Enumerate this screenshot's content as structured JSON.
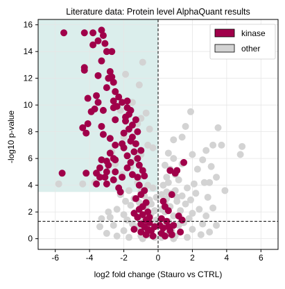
{
  "colors": {
    "kinase": "#a0004a",
    "other": "#d3d3d3",
    "highlight": "#cfe8e5",
    "grid": "#e6e6e6"
  },
  "chart_data": {
    "type": "scatter",
    "title": "Literature data: Protein level AlphaQuant results",
    "xlabel": "log2 fold change (Stauro vs CTRL)",
    "ylabel": "-log10 p-value",
    "xlim": [
      -7,
      7
    ],
    "ylim": [
      -0.8,
      16.4
    ],
    "xticks": [
      -6,
      -4,
      -2,
      0,
      2,
      4,
      6
    ],
    "yticks": [
      0,
      2,
      4,
      6,
      8,
      10,
      12,
      14,
      16
    ],
    "grid": true,
    "legend": "top-right",
    "threshold_lines": {
      "x": 0,
      "y": 1.3
    },
    "highlight_region": {
      "x": [
        -7,
        0
      ],
      "y": [
        3.5,
        16.4
      ]
    },
    "series": [
      {
        "name": "other",
        "color": "#d3d3d3",
        "points": [
          [
            -0.2,
            0.1
          ],
          [
            -0.5,
            0.3
          ],
          [
            -0.8,
            0.5
          ],
          [
            -1.0,
            0.2
          ],
          [
            -0.3,
            0.8
          ],
          [
            -1.2,
            0.9
          ],
          [
            -0.6,
            1.2
          ],
          [
            -1.5,
            1.1
          ],
          [
            -0.9,
            1.6
          ],
          [
            -1.8,
            1.4
          ],
          [
            -0.4,
            1.9
          ],
          [
            -1.3,
            2.0
          ],
          [
            -2.0,
            1.8
          ],
          [
            -0.7,
            2.3
          ],
          [
            -1.6,
            2.5
          ],
          [
            -1.1,
            2.7
          ],
          [
            -0.5,
            2.9
          ],
          [
            -1.9,
            2.8
          ],
          [
            -2.4,
            2.2
          ],
          [
            -1.4,
            3.0
          ],
          [
            -0.8,
            3.2
          ],
          [
            -2.2,
            3.3
          ],
          [
            -1.0,
            3.5
          ],
          [
            -1.7,
            3.6
          ],
          [
            -0.3,
            3.8
          ],
          [
            -0.6,
            4.0
          ],
          [
            -1.2,
            4.2
          ],
          [
            -2.0,
            0.6
          ],
          [
            -2.6,
            1.0
          ],
          [
            -3.0,
            0.4
          ],
          [
            -3.4,
            0.9
          ],
          [
            -2.8,
            1.6
          ],
          [
            -0.1,
            1.4
          ],
          [
            -0.2,
            2.1
          ],
          [
            -0.4,
            2.6
          ],
          [
            -1.1,
            4.6
          ],
          [
            -2.1,
            4.8
          ],
          [
            -0.9,
            5.0
          ],
          [
            -1.6,
            5.4
          ],
          [
            -1.3,
            5.9
          ],
          [
            -2.4,
            0.2
          ],
          [
            -1.7,
            0.1
          ],
          [
            -0.9,
            0.0
          ],
          [
            -2.9,
            2.0
          ],
          [
            -3.3,
            1.5
          ],
          [
            -1.5,
            7.2
          ],
          [
            -1.8,
            8.1
          ],
          [
            -2.0,
            7.6
          ],
          [
            -1.2,
            8.6
          ],
          [
            -1.0,
            9.0
          ],
          [
            -0.7,
            9.4
          ],
          [
            -2.2,
            9.6
          ],
          [
            -1.5,
            10.2
          ],
          [
            -1.1,
            11.5
          ],
          [
            -0.9,
            13.2
          ],
          [
            -1.9,
            12.3
          ],
          [
            -0.5,
            8.2
          ],
          [
            -0.3,
            6.8
          ],
          [
            -2.7,
            6.5
          ],
          [
            -3.0,
            4.1
          ],
          [
            -4.4,
            4.1
          ],
          [
            -5.8,
            4.1
          ],
          [
            -3.7,
            4.2
          ],
          [
            -3.5,
            5.0
          ],
          [
            -2.5,
            5.6
          ],
          [
            -1.0,
            6.3
          ],
          [
            -0.6,
            7.0
          ],
          [
            0.2,
            0.1
          ],
          [
            0.5,
            0.3
          ],
          [
            0.8,
            0.6
          ],
          [
            1.0,
            0.2
          ],
          [
            0.3,
            0.9
          ],
          [
            1.2,
            1.0
          ],
          [
            0.6,
            1.3
          ],
          [
            1.5,
            1.2
          ],
          [
            0.9,
            1.7
          ],
          [
            1.8,
            1.5
          ],
          [
            0.4,
            2.0
          ],
          [
            1.3,
            2.1
          ],
          [
            2.0,
            1.9
          ],
          [
            0.7,
            2.4
          ],
          [
            1.6,
            2.6
          ],
          [
            1.1,
            2.8
          ],
          [
            0.5,
            3.0
          ],
          [
            1.9,
            2.9
          ],
          [
            2.4,
            2.2
          ],
          [
            1.4,
            3.2
          ],
          [
            0.8,
            3.4
          ],
          [
            2.2,
            3.4
          ],
          [
            1.0,
            3.6
          ],
          [
            1.7,
            3.8
          ],
          [
            0.3,
            4.0
          ],
          [
            0.6,
            4.2
          ],
          [
            1.2,
            4.4
          ],
          [
            2.0,
            0.7
          ],
          [
            2.6,
            1.1
          ],
          [
            3.0,
            0.5
          ],
          [
            3.4,
            1.0
          ],
          [
            2.8,
            1.7
          ],
          [
            0.1,
            1.5
          ],
          [
            0.2,
            2.2
          ],
          [
            0.4,
            2.7
          ],
          [
            1.0,
            4.8
          ],
          [
            0.7,
            5.2
          ],
          [
            1.4,
            5.6
          ],
          [
            0.5,
            4.6
          ],
          [
            0.9,
            6.0
          ],
          [
            2.5,
            0.3
          ],
          [
            1.7,
            0.1
          ],
          [
            0.9,
            0.0
          ],
          [
            3.2,
            2.3
          ],
          [
            2.9,
            3.1
          ],
          [
            2.1,
            4.1
          ],
          [
            2.7,
            4.2
          ],
          [
            3.0,
            4.2
          ],
          [
            3.9,
            3.6
          ],
          [
            3.4,
            4.6
          ],
          [
            0.9,
            7.4
          ],
          [
            1.4,
            7.6
          ],
          [
            2.0,
            6.3
          ],
          [
            2.8,
            6.6
          ],
          [
            3.2,
            7.0
          ],
          [
            3.5,
            8.3
          ],
          [
            3.7,
            7.0
          ],
          [
            4.8,
            6.3
          ],
          [
            4.9,
            6.9
          ],
          [
            1.6,
            8.4
          ],
          [
            0.6,
            6.4
          ],
          [
            0.4,
            5.5
          ],
          [
            2.3,
            5.2
          ],
          [
            3.1,
            5.4
          ],
          [
            2.6,
            5.9
          ],
          [
            1.9,
            9.5
          ],
          [
            0.5,
            3.5
          ],
          [
            1.1,
            3.1
          ],
          [
            0.2,
            3.3
          ],
          [
            -0.1,
            3.1
          ]
        ]
      },
      {
        "name": "kinase",
        "color": "#a0004a",
        "points": [
          [
            -5.5,
            15.4
          ],
          [
            -4.3,
            15.4
          ],
          [
            -3.8,
            15.4
          ],
          [
            -3.3,
            15.6
          ],
          [
            -3.2,
            15.2
          ],
          [
            -3.5,
            14.8
          ],
          [
            -3.1,
            14.6
          ],
          [
            -3.8,
            14.5
          ],
          [
            -2.7,
            14.0
          ],
          [
            -3.0,
            14.0
          ],
          [
            -3.3,
            13.3
          ],
          [
            -4.3,
            12.8
          ],
          [
            -4.3,
            12.6
          ],
          [
            -2.8,
            12.5
          ],
          [
            -3.5,
            12.2
          ],
          [
            -2.9,
            12.0
          ],
          [
            -2.7,
            12.1
          ],
          [
            -2.6,
            11.7
          ],
          [
            -3.0,
            11.3
          ],
          [
            -2.5,
            11.0
          ],
          [
            -2.3,
            10.6
          ],
          [
            -2.6,
            10.3
          ],
          [
            -1.8,
            10.3
          ],
          [
            -2.1,
            10.2
          ],
          [
            -2.4,
            9.9
          ],
          [
            -1.8,
            9.8
          ],
          [
            -3.6,
            10.7
          ],
          [
            -4.1,
            10.5
          ],
          [
            -3.5,
            10.2
          ],
          [
            -3.7,
            9.7
          ],
          [
            -3.9,
            9.5
          ],
          [
            -2.6,
            9.8
          ],
          [
            -3.2,
            9.6
          ],
          [
            -1.6,
            9.6
          ],
          [
            -1.7,
            9.3
          ],
          [
            -1.9,
            9.1
          ],
          [
            -2.5,
            8.9
          ],
          [
            -1.3,
            8.9
          ],
          [
            -1.9,
            8.8
          ],
          [
            -1.5,
            8.5
          ],
          [
            -1.7,
            8.2
          ],
          [
            -1.2,
            8.0
          ],
          [
            -2.0,
            7.9
          ],
          [
            -1.5,
            7.6
          ],
          [
            -1.6,
            7.3
          ],
          [
            -1.3,
            7.1
          ],
          [
            -2.0,
            6.8
          ],
          [
            -1.0,
            6.6
          ],
          [
            -1.4,
            6.5
          ],
          [
            -1.8,
            6.2
          ],
          [
            -1.2,
            6.0
          ],
          [
            -2.5,
            5.9
          ],
          [
            -1.6,
            5.7
          ],
          [
            -1.1,
            5.5
          ],
          [
            -1.8,
            5.3
          ],
          [
            -0.9,
            5.1
          ],
          [
            -1.5,
            4.8
          ],
          [
            -0.8,
            4.7
          ],
          [
            -1.2,
            4.6
          ],
          [
            -2.1,
            4.6
          ],
          [
            -4.4,
            8.3
          ],
          [
            -4.2,
            7.9
          ],
          [
            -4.1,
            8.6
          ],
          [
            -3.3,
            8.4
          ],
          [
            -3.2,
            7.8
          ],
          [
            -2.8,
            7.5
          ],
          [
            -2.5,
            7.0
          ],
          [
            -2.8,
            6.4
          ],
          [
            -2.6,
            6.0
          ],
          [
            -3.0,
            5.8
          ],
          [
            -3.3,
            5.9
          ],
          [
            -2.9,
            5.5
          ],
          [
            -3.4,
            5.3
          ],
          [
            -2.5,
            5.0
          ],
          [
            -3.1,
            4.6
          ],
          [
            -3.0,
            4.1
          ],
          [
            -2.6,
            4.4
          ],
          [
            -2.3,
            3.8
          ],
          [
            -2.2,
            3.5
          ],
          [
            -3.4,
            4.6
          ],
          [
            -3.6,
            4.1
          ],
          [
            -4.2,
            4.9
          ],
          [
            -5.6,
            4.9
          ],
          [
            -3.6,
            4.9
          ],
          [
            -1.1,
            4.0
          ],
          [
            -0.8,
            3.6
          ],
          [
            -1.0,
            3.3
          ],
          [
            -1.3,
            3.0
          ],
          [
            -0.7,
            2.7
          ],
          [
            -0.9,
            2.4
          ],
          [
            -1.1,
            2.2
          ],
          [
            -0.6,
            2.0
          ],
          [
            -0.9,
            1.8
          ],
          [
            -1.2,
            1.6
          ],
          [
            -0.7,
            1.4
          ],
          [
            -0.5,
            1.2
          ],
          [
            -1.0,
            1.1
          ],
          [
            -0.8,
            0.9
          ],
          [
            -0.6,
            0.7
          ],
          [
            -1.0,
            0.5
          ],
          [
            -0.4,
            0.6
          ],
          [
            -0.7,
            0.3
          ],
          [
            -0.3,
            0.2
          ],
          [
            -0.2,
            0.9
          ],
          [
            -1.4,
            1.9
          ],
          [
            -1.4,
            0.7
          ],
          [
            -0.5,
            1.6
          ],
          [
            -2.1,
            7.1
          ],
          [
            -3.0,
            5.0
          ],
          [
            0.7,
            5.1
          ],
          [
            1.1,
            5.1
          ],
          [
            1.5,
            5.7
          ],
          [
            1.0,
            4.9
          ],
          [
            0.8,
            3.3
          ],
          [
            0.3,
            2.8
          ],
          [
            0.4,
            2.4
          ],
          [
            0.6,
            2.1
          ],
          [
            1.2,
            1.7
          ],
          [
            0.2,
            1.5
          ],
          [
            0.5,
            1.3
          ],
          [
            0.9,
            1.0
          ],
          [
            0.3,
            0.8
          ],
          [
            0.7,
            0.6
          ],
          [
            0.2,
            0.4
          ],
          [
            0.4,
            0.2
          ],
          [
            1.3,
            0.5
          ],
          [
            0.8,
            0.3
          ],
          [
            0.1,
            1.0
          ],
          [
            0.6,
            0.9
          ],
          [
            1.4,
            1.4
          ]
        ]
      }
    ]
  }
}
